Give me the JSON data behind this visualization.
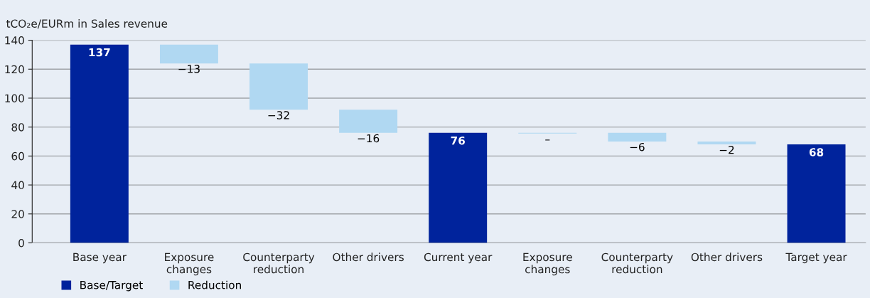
{
  "chart_data": {
    "type": "bar",
    "ylabel": "tCO₂e/EURm in Sales revenue",
    "categories": [
      "Base year",
      "Exposure\nchanges",
      "Counterparty\nreduction",
      "Other drivers",
      "Current year",
      "Exposure\nchanges",
      "Counterparty\nreduction",
      "Other drivers",
      "Target year"
    ],
    "series": [
      {
        "name": "Base/Target",
        "color": "#00239c",
        "values": [
          137,
          null,
          null,
          null,
          76,
          null,
          null,
          null,
          68
        ],
        "value_labels": [
          "137",
          null,
          null,
          null,
          "76",
          null,
          null,
          null,
          "68"
        ]
      },
      {
        "name": "Reduction",
        "color": "#b0d8f2",
        "base": [
          null,
          137,
          124,
          92,
          null,
          76,
          76,
          70,
          null
        ],
        "values": [
          null,
          -13,
          -32,
          -16,
          null,
          -0.5,
          -6,
          -2,
          null
        ],
        "value_labels": [
          null,
          "−13",
          "−32",
          "−16",
          null,
          "–",
          "−6",
          "−2",
          null
        ]
      }
    ],
    "ylim": [
      0,
      140
    ],
    "yticks": [
      0,
      20,
      40,
      60,
      80,
      100,
      120,
      140
    ],
    "grid": "y",
    "legend": "bottom left"
  }
}
